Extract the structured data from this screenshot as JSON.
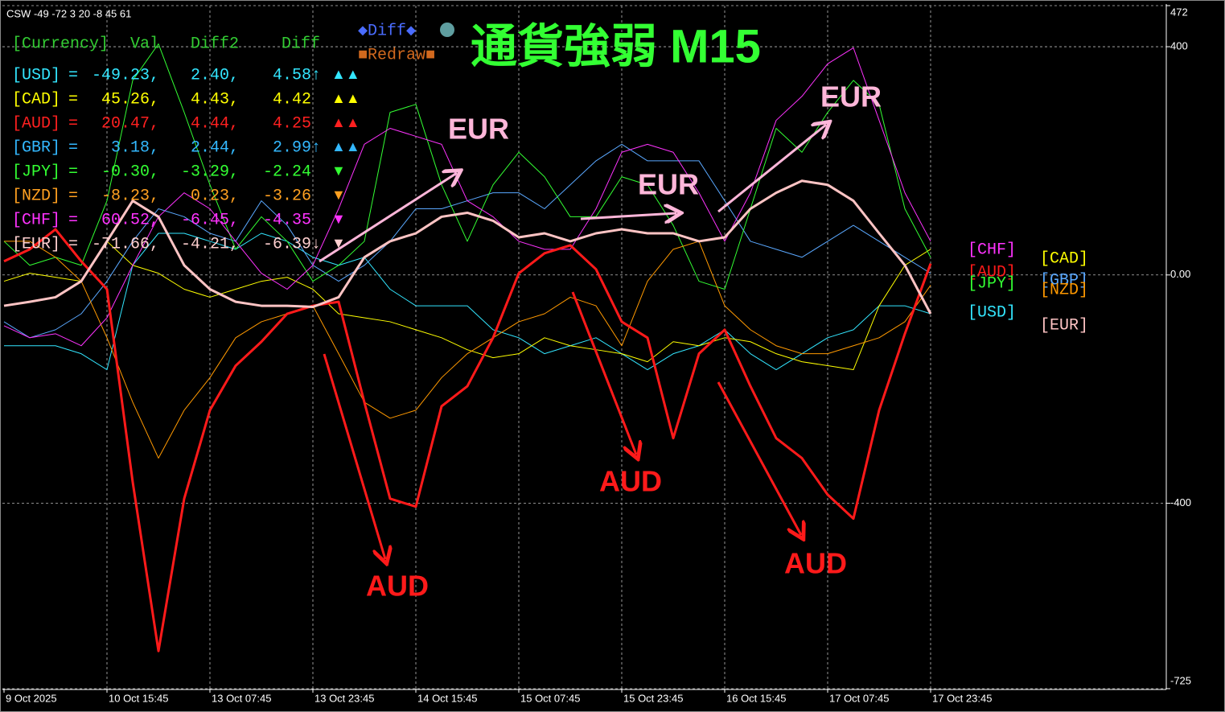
{
  "header": {
    "indicator": "CSW -49 -72 3 20 -8 45 61"
  },
  "panel": {
    "columns": [
      "[Currency]",
      "Val",
      "Diff2",
      "Diff"
    ],
    "buttons": [
      "◆Diff◆",
      "■Redraw■"
    ],
    "rows": [
      {
        "currency": "[USD]",
        "eq": "=",
        "val": "-49.23,",
        "diff2": "2.40,",
        "diff": "4.58↑",
        "signal": "▲▲",
        "color": "#33e6ff"
      },
      {
        "currency": "[CAD]",
        "eq": "=",
        "val": "45.26,",
        "diff2": "4.43,",
        "diff": "4.42",
        "signal": "▲▲",
        "color": "#ffff00"
      },
      {
        "currency": "[AUD]",
        "eq": "=",
        "val": "20.47,",
        "diff2": "4.44,",
        "diff": "4.25",
        "signal": "▲▲",
        "color": "#ff2020"
      },
      {
        "currency": "[GBR]",
        "eq": "=",
        "val": "3.18,",
        "diff2": "2.44,",
        "diff": "2.99↑",
        "signal": "▲▲",
        "color": "#33b8ff"
      },
      {
        "currency": "[JPY]",
        "eq": "=",
        "val": "-0.30,",
        "diff2": "-3.29,",
        "diff": "-2.24",
        "signal": "▼",
        "color": "#33ff33"
      },
      {
        "currency": "[NZD]",
        "eq": "=",
        "val": "-8.23,",
        "diff2": "0.23,",
        "diff": "-3.26",
        "signal": "▼",
        "color": "#ffa020"
      },
      {
        "currency": "[CHF]",
        "eq": "=",
        "val": "60.52,",
        "diff2": "-6.45,",
        "diff": "-4.35",
        "signal": "▼",
        "color": "#ff33ff"
      },
      {
        "currency": "[EUR]",
        "eq": "=",
        "val": "-71.66,",
        "diff2": "-4.21,",
        "diff": "-6.39↓",
        "signal": "▼",
        "color": "#ffd0d0"
      }
    ]
  },
  "chart_data": {
    "type": "line",
    "title": "通貨強弱 M15",
    "annotations": [
      "EUR",
      "EUR",
      "EUR",
      "AUD",
      "AUD",
      "AUD"
    ],
    "categories": [
      "9 Oct 2025",
      null,
      null,
      null,
      "10 Oct 15:45",
      null,
      null,
      null,
      "13 Oct 07:45",
      null,
      null,
      null,
      "13 Oct 23:45",
      null,
      null,
      null,
      "14 Oct 15:45",
      null,
      null,
      null,
      "15 Oct 07:45",
      null,
      null,
      null,
      "15 Oct 23:45",
      null,
      null,
      null,
      "16 Oct 15:45",
      null,
      null,
      null,
      "17 Oct 07:45",
      null,
      null,
      null,
      "17 Oct 23:45"
    ],
    "ylim": [
      -725,
      472
    ],
    "yticks": [
      472,
      400,
      {
        "value": 0,
        "label": "0.00"
      },
      -400,
      -725
    ],
    "grid": true,
    "series": [
      {
        "name": "[USD]",
        "color": "#33e6ff",
        "line_width": 1,
        "values": [
          -124,
          -124,
          -124,
          -138,
          -166,
          17,
          73,
          73,
          59,
          45,
          73,
          59,
          31,
          17,
          31,
          -25,
          -54,
          -54,
          -54,
          -96,
          -110,
          -138,
          -124,
          -110,
          -138,
          -166,
          -138,
          -124,
          -96,
          -138,
          -166,
          -138,
          -110,
          -96,
          -54,
          -54,
          -68
        ]
      },
      {
        "name": "[CAD]",
        "color": "#ffff00",
        "line_width": 1,
        "values": [
          -11,
          3,
          -4,
          -11,
          59,
          17,
          3,
          -25,
          -39,
          -25,
          -11,
          -4,
          -25,
          -68,
          -75,
          -82,
          -96,
          -110,
          -131,
          -145,
          -138,
          -110,
          -124,
          -131,
          -138,
          -152,
          -117,
          -124,
          -110,
          -117,
          -138,
          -152,
          -159,
          -166,
          -54,
          17,
          45
        ]
      },
      {
        "name": "[AUD]",
        "color": "#ff1a1a",
        "line_width": 3,
        "values": [
          24,
          45,
          80,
          24,
          -25,
          -363,
          -659,
          -392,
          -237,
          -159,
          -117,
          -68,
          -54,
          -47,
          -223,
          -392,
          -406,
          -230,
          -195,
          -110,
          3,
          38,
          52,
          10,
          -82,
          -110,
          -286,
          -138,
          -96,
          -195,
          -286,
          -321,
          -385,
          -427,
          -237,
          -103,
          20
        ]
      },
      {
        "name": "[GBP]",
        "color": "#5aa8ff",
        "line_width": 1,
        "values": [
          -82,
          -110,
          -96,
          -68,
          -11,
          59,
          116,
          102,
          73,
          59,
          130,
          87,
          17,
          -11,
          17,
          59,
          116,
          116,
          130,
          144,
          144,
          116,
          158,
          200,
          229,
          200,
          200,
          200,
          130,
          59,
          45,
          31,
          59,
          87,
          59,
          31,
          3
        ]
      },
      {
        "name": "[JPY]",
        "color": "#33ff33",
        "line_width": 1,
        "values": [
          59,
          17,
          31,
          17,
          130,
          341,
          405,
          285,
          158,
          45,
          102,
          59,
          -11,
          17,
          59,
          285,
          299,
          158,
          59,
          158,
          215,
          172,
          102,
          102,
          172,
          158,
          87,
          -11,
          -25,
          116,
          257,
          215,
          285,
          341,
          299,
          116,
          31
        ]
      },
      {
        "name": "[NZD]",
        "color": "#ff9900",
        "line_width": 1,
        "values": [
          59,
          59,
          31,
          -11,
          -110,
          -223,
          -321,
          -237,
          -180,
          -110,
          -82,
          -68,
          -54,
          -138,
          -223,
          -251,
          -237,
          -180,
          -138,
          -110,
          -82,
          -68,
          -39,
          -54,
          -124,
          -11,
          45,
          59,
          -54,
          -96,
          -124,
          -138,
          -138,
          -124,
          -110,
          -82,
          -18
        ]
      },
      {
        "name": "[CHF]",
        "color": "#ff33ff",
        "line_width": 1,
        "values": [
          -89,
          -110,
          -103,
          -124,
          -75,
          17,
          102,
          144,
          116,
          59,
          3,
          -25,
          17,
          116,
          229,
          257,
          243,
          229,
          130,
          102,
          59,
          45,
          45,
          116,
          215,
          229,
          215,
          144,
          59,
          144,
          271,
          313,
          370,
          398,
          271,
          144,
          59
        ]
      },
      {
        "name": "[EUR]",
        "color": "#ffc4c4",
        "line_width": 3,
        "values": [
          -54,
          -47,
          -39,
          -11,
          59,
          130,
          102,
          17,
          -25,
          -47,
          -54,
          -54,
          -56,
          -39,
          31,
          59,
          73,
          102,
          109,
          95,
          66,
          73,
          59,
          73,
          80,
          73,
          73,
          59,
          66,
          116,
          144,
          165,
          158,
          130,
          73,
          17,
          -68
        ]
      }
    ]
  }
}
